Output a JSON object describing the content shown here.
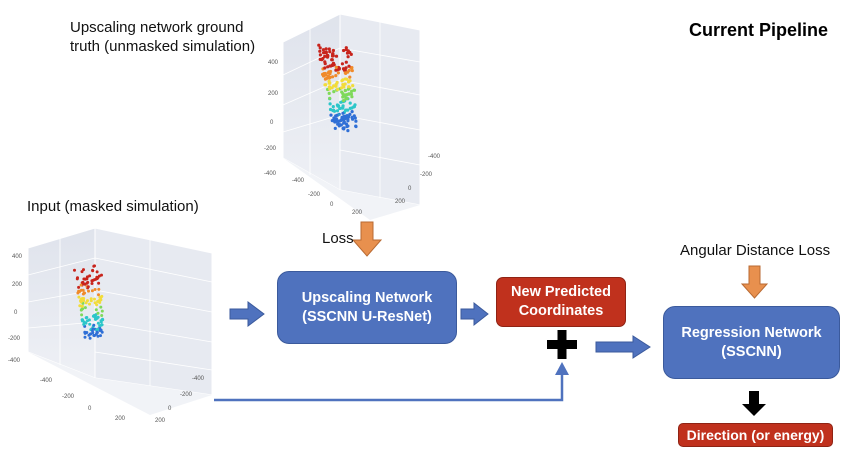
{
  "title": "Current Pipeline",
  "labels": {
    "ground_truth_line1": "Upscaling network ground",
    "ground_truth_line2": "truth (unmasked simulation)",
    "input": "Input (masked simulation)",
    "loss": "Loss",
    "angular_loss": "Angular Distance Loss"
  },
  "boxes": {
    "upscaling_line1": "Upscaling Network",
    "upscaling_line2": "(SSCNN U-ResNet)",
    "predicted_line1": "New Predicted",
    "predicted_line2": "Coordinates",
    "regression_line1": "Regression Network",
    "regression_line2": "(SSCNN)",
    "output": "Direction (or energy)"
  },
  "plot_ticks": {
    "z": [
      "400",
      "200",
      "0",
      "-200",
      "-400"
    ],
    "x": [
      "-400",
      "-200",
      "0",
      "200"
    ],
    "y": [
      "-400",
      "-200",
      "0",
      "200"
    ]
  },
  "colors": {
    "box_blue": "#4f72be",
    "box_red": "#c0311d",
    "arrow_blue": "#4f72be",
    "arrow_orange": "#e8904e"
  }
}
